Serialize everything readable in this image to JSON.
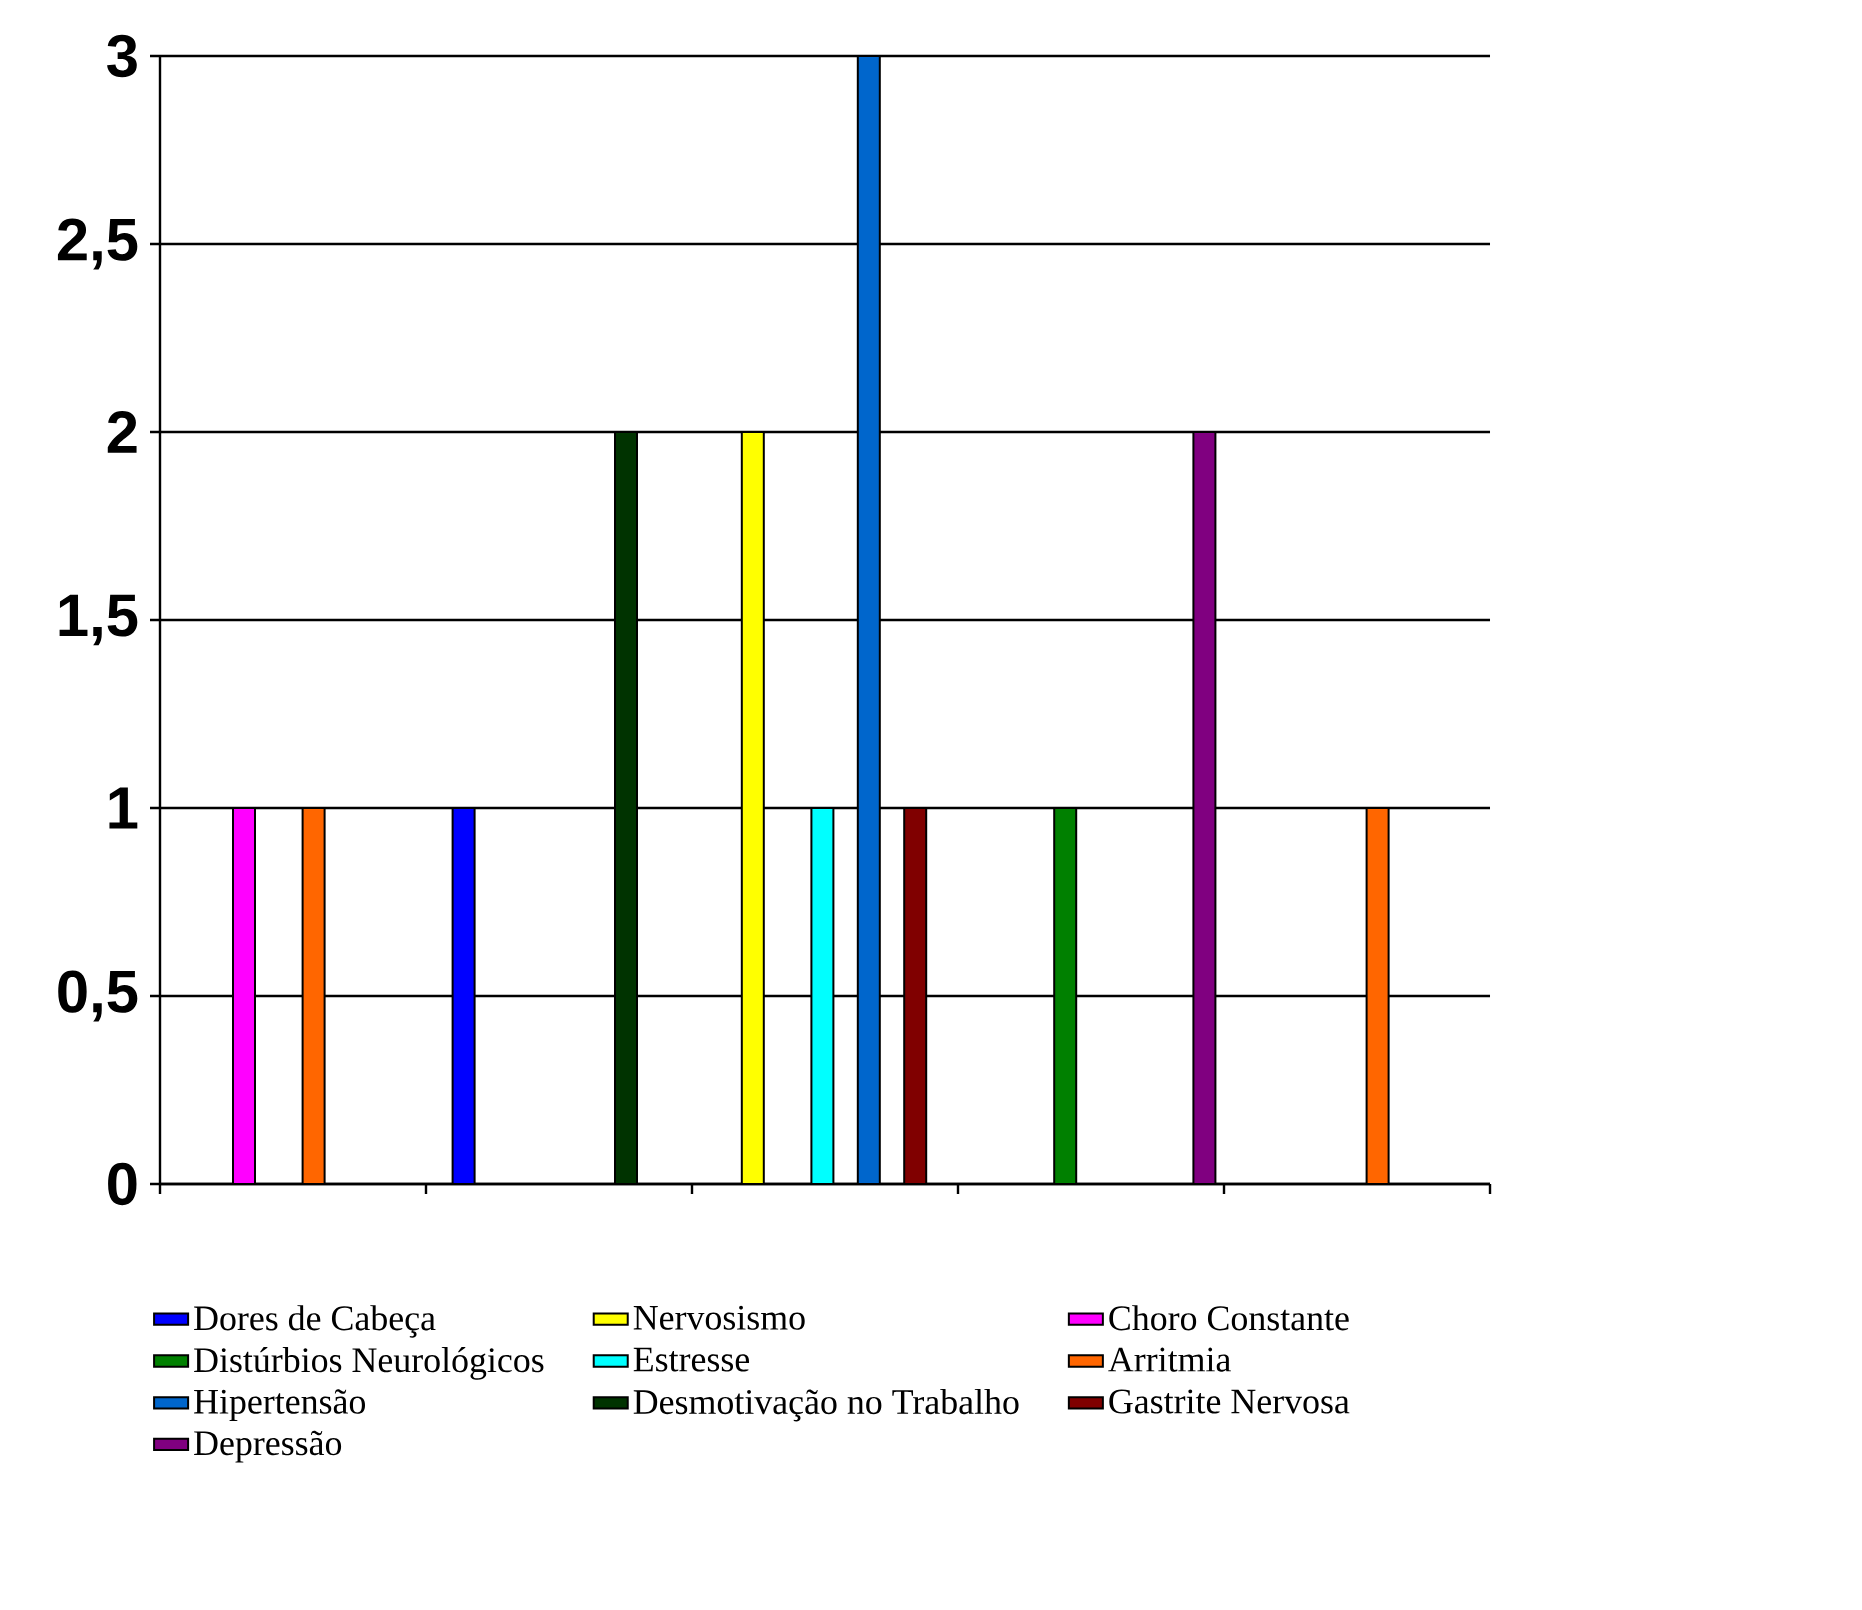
{
  "chart_data": {
    "type": "bar",
    "categories": [
      null,
      null,
      null,
      null,
      null
    ],
    "series": [
      {
        "name": "Dores de Cabeça",
        "color": "#0000ff",
        "values": [
          null,
          1,
          null,
          null,
          null
        ]
      },
      {
        "name": "Nervosismo",
        "color": "#ffff00",
        "values": [
          null,
          null,
          2,
          null,
          null
        ]
      },
      {
        "name": "Choro Constante",
        "color": "#ff00ff",
        "values": [
          1,
          null,
          null,
          null,
          null
        ]
      },
      {
        "name": "Distúrbios Neurológicos",
        "color": "#008000",
        "values": [
          null,
          null,
          null,
          1,
          null
        ]
      },
      {
        "name": "Estresse",
        "color": "#00ffff",
        "values": [
          null,
          null,
          1,
          null,
          null
        ]
      },
      {
        "name": "Arritmia",
        "color": "#ff6600",
        "values": [
          1,
          null,
          null,
          null,
          1
        ]
      },
      {
        "name": "Hipertensão",
        "color": "#0066cc",
        "values": [
          null,
          null,
          3,
          null,
          null
        ]
      },
      {
        "name": "Desmotivação no Trabalho",
        "color": "#003300",
        "values": [
          null,
          2,
          null,
          null,
          null
        ]
      },
      {
        "name": "Gastrite Nervosa",
        "color": "#800000",
        "values": [
          null,
          null,
          1,
          null,
          null
        ]
      },
      {
        "name": "Depressão",
        "color": "#800080",
        "values": [
          null,
          null,
          null,
          2,
          null
        ]
      }
    ],
    "ylim": [
      0,
      3
    ],
    "yticks": [
      0,
      {
        "value": 0.5,
        "label": "0,5"
      },
      1,
      {
        "value": 1.5,
        "label": "1,5"
      },
      2,
      {
        "value": 2.5,
        "label": "2,5"
      },
      3
    ],
    "grid": "y",
    "legend": "bottom"
  }
}
